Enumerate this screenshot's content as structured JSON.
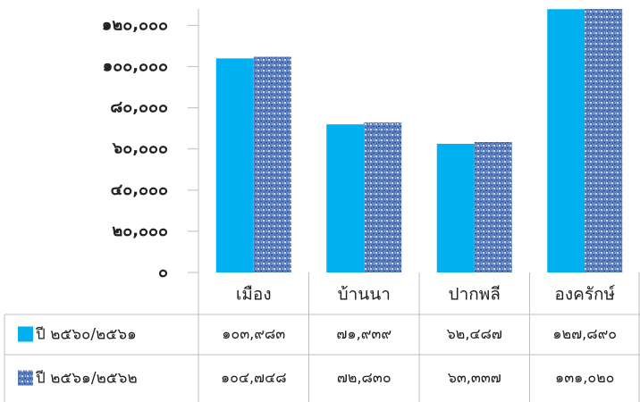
{
  "chart_data": {
    "type": "bar",
    "categories": [
      "เมือง",
      "บ้านนา",
      "ปากพลี",
      "องครักษ์"
    ],
    "series": [
      {
        "name": "ปี ๒๕๖๐/๒๕๖๑",
        "color": "#00b0f0",
        "values": [
          103983,
          71939,
          62487,
          127890
        ],
        "value_labels": [
          "๑๐๓,๙๘๓",
          "๗๑,๙๓๙",
          "๖๒,๔๘๗",
          "๑๒๗,๘๙๐"
        ]
      },
      {
        "name": "ปี ๒๕๖๑/๒๕๖๒",
        "color": "#5b7fbf",
        "values": [
          104748,
          72830,
          63337,
          131020
        ],
        "value_labels": [
          "๑๐๔,๗๔๘",
          "๗๒,๘๓๐",
          "๖๓,๓๓๗",
          "๑๓๑,๐๒๐"
        ]
      }
    ],
    "ylim": [
      0,
      128000
    ],
    "yticks": [
      {
        "value": 0,
        "label": "๐"
      },
      {
        "value": 20000,
        "label": "๒๐,๐๐๐"
      },
      {
        "value": 40000,
        "label": "๔๐,๐๐๐"
      },
      {
        "value": 60000,
        "label": "๖๐,๐๐๐"
      },
      {
        "value": 80000,
        "label": "๘๐,๐๐๐"
      },
      {
        "value": 100000,
        "label": "๑๐๐,๐๐๐"
      },
      {
        "value": 120000,
        "label": "๑๒๐,๐๐๐"
      }
    ],
    "data_table": true
  }
}
